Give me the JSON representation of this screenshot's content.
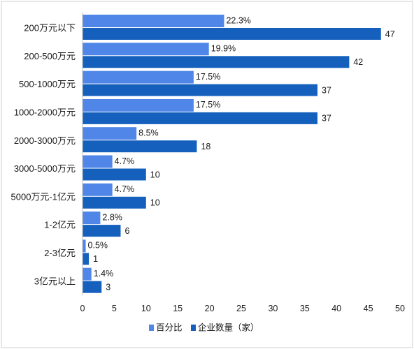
{
  "chart_data": {
    "type": "bar",
    "orientation": "horizontal",
    "categories": [
      "200万元以下",
      "200-500万元",
      "500-1000万元",
      "1000-2000万元",
      "2000-3000万元",
      "3000-5000万元",
      "5000万元-1亿元",
      "1-2亿元",
      "2-3亿元",
      "3亿元以上"
    ],
    "series": [
      {
        "name": "百分比",
        "values": [
          22.3,
          19.9,
          17.5,
          17.5,
          8.5,
          4.7,
          4.7,
          2.8,
          0.5,
          1.4
        ],
        "labels": [
          "22.3%",
          "19.9%",
          "17.5%",
          "17.5%",
          "8.5%",
          "4.7%",
          "4.7%",
          "2.8%",
          "0.5%",
          "1.4%"
        ],
        "color": "#4f86e8"
      },
      {
        "name": "企业数量（家）",
        "values": [
          47,
          42,
          37,
          37,
          18,
          10,
          10,
          6,
          1,
          3
        ],
        "labels": [
          "47",
          "42",
          "37",
          "37",
          "18",
          "10",
          "10",
          "6",
          "1",
          "3"
        ],
        "color": "#1560bd"
      }
    ],
    "xlim": [
      0,
      50
    ],
    "xticks": [
      "0",
      "5",
      "10",
      "15",
      "20",
      "25",
      "30",
      "35",
      "40",
      "45",
      "50"
    ],
    "title": "",
    "xlabel": "",
    "ylabel": "",
    "grid": false,
    "legend_position": "bottom"
  }
}
